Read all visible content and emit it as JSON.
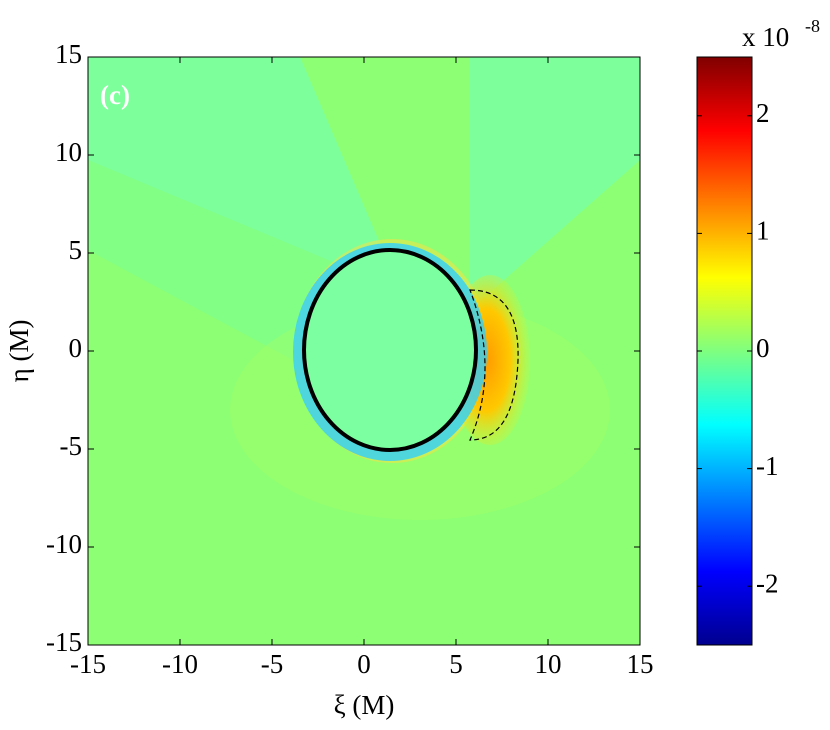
{
  "chart_data": {
    "type": "heatmap",
    "panel_label": "(c)",
    "x_label": "ξ (M)",
    "y_label": "η (M)",
    "xlim": [
      -15,
      15
    ],
    "xticks": [
      -15,
      -10,
      -5,
      0,
      5,
      10,
      15
    ],
    "ylim": [
      -15,
      15
    ],
    "yticks": [
      -15,
      -10,
      -5,
      0,
      5,
      10,
      15
    ],
    "colormap": "jet",
    "clim": [
      -2.5,
      2.5
    ],
    "cticks": [
      -2,
      -1,
      0,
      1,
      2
    ],
    "colorbar_multiplier": "x 10",
    "colorbar_exponent": "-8"
  }
}
